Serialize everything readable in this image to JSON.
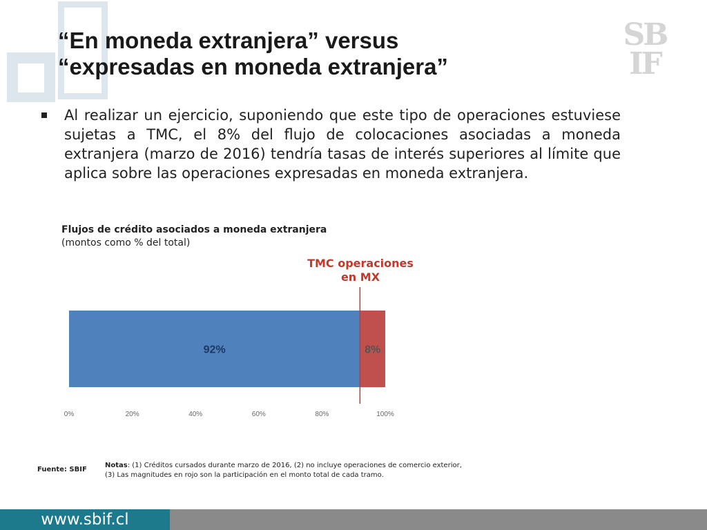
{
  "slide": {
    "title_line1": "“En moneda extranjera” versus",
    "title_line2": "“expresadas en moneda extranjera”",
    "logo_line1": "SB",
    "logo_line2": "IF",
    "bullet": "Al realizar un ejercicio, suponiendo que este tipo de operaciones estuviese sujetas a TMC, el 8% del flujo de colocaciones asociadas a moneda extranjera (marzo de 2016) tendría tasas de interés superiores al límite que aplica sobre las operaciones expresadas en moneda extranjera.",
    "source": "Fuente: SBIF",
    "notes_label": "Notas",
    "notes_text": ": (1) Créditos cursados durante marzo de 2016, (2) no incluye operaciones de comercio exterior, (3) Las magnitudes en rojo son la participación en el monto total de cada tramo.",
    "url": "www.sbif.cl"
  },
  "colors": {
    "accent_blue": "#4f81bd",
    "accent_red": "#c0504d",
    "tmc_line": "#c0392b",
    "footer_teal": "#1d7a8c",
    "footer_gray": "#8a8a8a"
  },
  "chart_data": {
    "type": "bar",
    "orientation": "horizontal",
    "stacked": true,
    "title": "Flujos de crédito asociados a moneda extranjera",
    "subtitle": "(montos como % del total)",
    "series": [
      {
        "values": [
          92
        ],
        "label": "92%",
        "color": "#4f81bd"
      },
      {
        "values": [
          8
        ],
        "label": "8%",
        "color": "#c0504d"
      }
    ],
    "xlim": [
      0,
      100
    ],
    "x_ticks": [
      "0%",
      "20%",
      "40%",
      "60%",
      "80%",
      "100%"
    ],
    "annotation": {
      "label_line1": "TMC operaciones",
      "label_line2": "en MX",
      "x": 92
    },
    "grid": false,
    "legend": "none"
  }
}
